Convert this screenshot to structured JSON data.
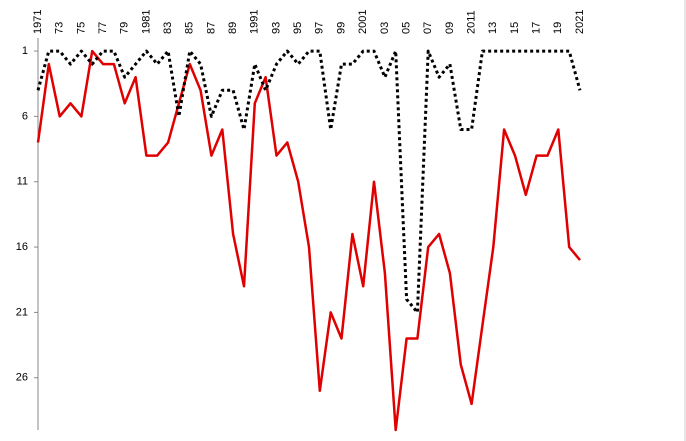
{
  "chart_data": {
    "type": "line",
    "categories": [
      "1971",
      null,
      "73",
      null,
      "75",
      null,
      "77",
      null,
      "79",
      null,
      "1981",
      null,
      "83",
      null,
      "85",
      null,
      "87",
      null,
      "89",
      null,
      "1991",
      null,
      "93",
      null,
      "95",
      null,
      "97",
      null,
      "99",
      null,
      "2001",
      null,
      "03",
      null,
      "05",
      null,
      "07",
      null,
      "09",
      null,
      "2011",
      null,
      "13",
      null,
      "15",
      null,
      "17",
      null,
      "19",
      null,
      "2021"
    ],
    "series": [
      {
        "color": "#e00000",
        "dash": false,
        "values": [
          8,
          2,
          6,
          5,
          6,
          1,
          2,
          2,
          5,
          3,
          9,
          9,
          8,
          5,
          2,
          4,
          9,
          7,
          15,
          19,
          5,
          3,
          9,
          8,
          11,
          16,
          27,
          21,
          23,
          15,
          19,
          11,
          18,
          30,
          23,
          23,
          16,
          15,
          18,
          25,
          28,
          22,
          16,
          7,
          9,
          12,
          9,
          9,
          7,
          16,
          17
        ]
      },
      {
        "color": "#000000",
        "dash": true,
        "values": [
          4,
          1,
          1,
          2,
          1,
          2,
          1,
          1,
          3,
          2,
          1,
          2,
          1,
          6,
          1,
          2,
          6,
          4,
          4,
          7,
          2,
          4,
          2,
          1,
          2,
          1,
          1,
          7,
          2,
          2,
          1,
          1,
          3,
          1,
          20,
          21,
          1,
          3,
          2,
          7,
          7,
          1,
          1,
          1,
          1,
          1,
          1,
          1,
          1,
          1,
          4
        ]
      }
    ],
    "ylim": [
      30,
      0
    ],
    "yticks": [
      1,
      6,
      11,
      16,
      21,
      26
    ],
    "grid": false
  }
}
